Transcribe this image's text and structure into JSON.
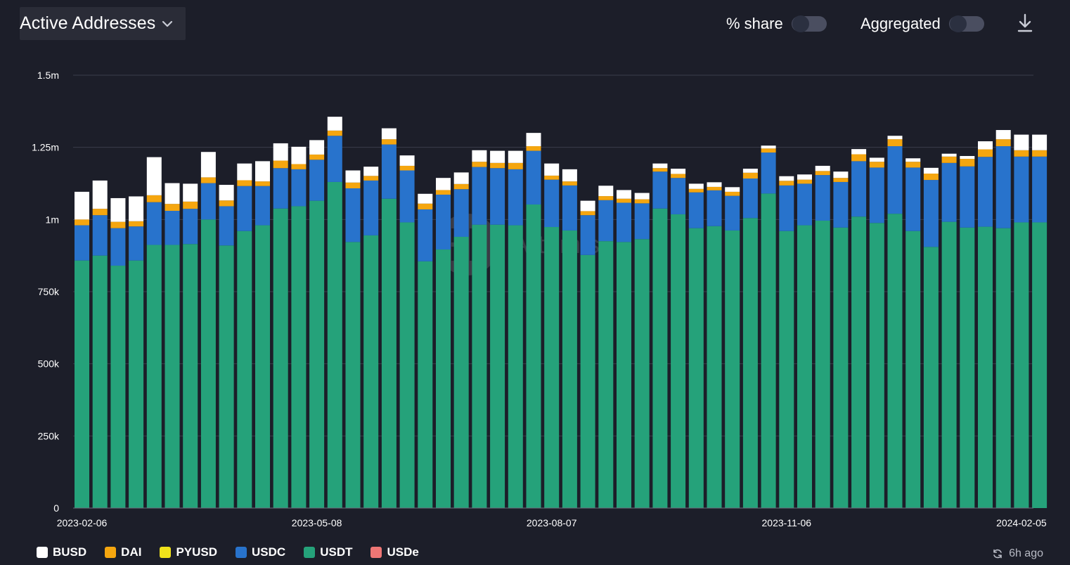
{
  "header": {
    "metric_title": "Active Addresses",
    "toggles": [
      {
        "label": "% share",
        "on": false
      },
      {
        "label": "Aggregated",
        "on": false
      }
    ]
  },
  "watermark": "Artemis",
  "updated_text": "6h ago",
  "colors": {
    "BUSD": "#ffffff",
    "DAI": "#f5a60f",
    "PYUSD": "#f0e21b",
    "USDC": "#2873cc",
    "USDT": "#25a27a",
    "USDe": "#ee7675",
    "grid": "#3a3d4a",
    "axis_text": "#ffffff"
  },
  "legend": [
    "BUSD",
    "DAI",
    "PYUSD",
    "USDC",
    "USDT",
    "USDe"
  ],
  "chart_data": {
    "type": "bar",
    "stacked": true,
    "title": "Active Addresses",
    "ylim": [
      0,
      1500000
    ],
    "y_ticks": [
      {
        "value": 0,
        "label": "0"
      },
      {
        "value": 250000,
        "label": "250k"
      },
      {
        "value": 500000,
        "label": "500k"
      },
      {
        "value": 750000,
        "label": "750k"
      },
      {
        "value": 1000000,
        "label": "1m"
      },
      {
        "value": 1250000,
        "label": "1.25m"
      },
      {
        "value": 1500000,
        "label": "1.5m"
      }
    ],
    "x_tick_labels": [
      {
        "index": 0,
        "label": "2023-02-06"
      },
      {
        "index": 13,
        "label": "2023-05-08"
      },
      {
        "index": 26,
        "label": "2023-08-07"
      },
      {
        "index": 39,
        "label": "2023-11-06"
      },
      {
        "index": 52,
        "label": "2024-02-05"
      }
    ],
    "categories": [
      "2023-02-06",
      "2023-02-13",
      "2023-02-20",
      "2023-02-27",
      "2023-03-06",
      "2023-03-13",
      "2023-03-20",
      "2023-03-27",
      "2023-04-03",
      "2023-04-10",
      "2023-04-17",
      "2023-04-24",
      "2023-05-01",
      "2023-05-08",
      "2023-05-15",
      "2023-05-22",
      "2023-05-29",
      "2023-06-05",
      "2023-06-12",
      "2023-06-19",
      "2023-06-26",
      "2023-07-03",
      "2023-07-10",
      "2023-07-17",
      "2023-07-24",
      "2023-07-31",
      "2023-08-07",
      "2023-08-14",
      "2023-08-21",
      "2023-08-28",
      "2023-09-04",
      "2023-09-11",
      "2023-09-18",
      "2023-09-25",
      "2023-10-02",
      "2023-10-09",
      "2023-10-16",
      "2023-10-23",
      "2023-10-30",
      "2023-11-06",
      "2023-11-13",
      "2023-11-20",
      "2023-11-27",
      "2023-12-04",
      "2023-12-11",
      "2023-12-18",
      "2023-12-25",
      "2024-01-01",
      "2024-01-08",
      "2024-01-15",
      "2024-01-22",
      "2024-01-29",
      "2024-02-05",
      "2024-02-12"
    ],
    "series": [
      {
        "name": "USDT",
        "values": [
          858000,
          875000,
          840000,
          858000,
          912000,
          912000,
          915000,
          1000000,
          910000,
          960000,
          980000,
          1038000,
          1046000,
          1065000,
          1130000,
          922000,
          945000,
          1072000,
          990000,
          855000,
          896000,
          940000,
          982000,
          982000,
          980000,
          1052000,
          974000,
          962000,
          877000,
          925000,
          922000,
          932000,
          1038000,
          1018000,
          970000,
          977000,
          962000,
          1005000,
          1090000,
          960000,
          980000,
          996000,
          972000,
          1010000,
          988000,
          1020000,
          960000,
          905000,
          992000,
          972000,
          975000,
          970000,
          990000,
          990000
        ]
      },
      {
        "name": "USDC",
        "values": [
          122000,
          140000,
          130000,
          118000,
          148000,
          118000,
          122000,
          126000,
          136000,
          156000,
          136000,
          140000,
          128000,
          142000,
          160000,
          186000,
          190000,
          188000,
          180000,
          180000,
          190000,
          165000,
          200000,
          196000,
          194000,
          186000,
          164000,
          156000,
          138000,
          142000,
          136000,
          124000,
          128000,
          126000,
          124000,
          124000,
          120000,
          137000,
          142000,
          158000,
          144000,
          158000,
          158000,
          192000,
          192000,
          234000,
          220000,
          232000,
          204000,
          212000,
          242000,
          284000,
          228000,
          228000
        ]
      },
      {
        "name": "DAI",
        "values": [
          20000,
          22000,
          22000,
          18000,
          24000,
          24000,
          25000,
          20000,
          20000,
          20000,
          16000,
          26000,
          18000,
          18000,
          18000,
          20000,
          16000,
          18000,
          16000,
          20000,
          16000,
          18000,
          18000,
          18000,
          22000,
          16000,
          14000,
          14000,
          14000,
          14000,
          14000,
          14000,
          12000,
          14000,
          12000,
          12000,
          14000,
          20000,
          14000,
          16000,
          14000,
          14000,
          14000,
          24000,
          20000,
          24000,
          20000,
          22000,
          22000,
          26000,
          26000,
          24000,
          22000,
          22000
        ]
      },
      {
        "name": "PYUSD",
        "values": [
          0,
          0,
          0,
          0,
          0,
          0,
          0,
          0,
          0,
          0,
          0,
          0,
          0,
          0,
          0,
          0,
          0,
          0,
          0,
          0,
          0,
          0,
          0,
          0,
          0,
          0,
          0,
          0,
          0,
          0,
          0,
          0,
          0,
          0,
          0,
          0,
          0,
          0,
          0,
          0,
          0,
          0,
          0,
          0,
          0,
          0,
          0,
          0,
          0,
          0,
          0,
          0,
          0,
          0
        ]
      },
      {
        "name": "BUSD",
        "values": [
          96000,
          98000,
          82000,
          86000,
          132000,
          72000,
          62000,
          88000,
          54000,
          58000,
          70000,
          60000,
          60000,
          50000,
          48000,
          42000,
          32000,
          38000,
          36000,
          34000,
          42000,
          40000,
          40000,
          42000,
          42000,
          46000,
          42000,
          42000,
          36000,
          36000,
          30000,
          22000,
          16000,
          18000,
          18000,
          16000,
          16000,
          14000,
          10000,
          16000,
          18000,
          18000,
          22000,
          18000,
          14000,
          12000,
          12000,
          20000,
          10000,
          10000,
          28000,
          32000,
          54000,
          54000
        ]
      },
      {
        "name": "USDe",
        "values": [
          0,
          0,
          0,
          0,
          0,
          0,
          0,
          0,
          0,
          0,
          0,
          0,
          0,
          0,
          0,
          0,
          0,
          0,
          0,
          0,
          0,
          0,
          0,
          0,
          0,
          0,
          0,
          0,
          0,
          0,
          0,
          0,
          0,
          0,
          0,
          0,
          0,
          0,
          0,
          0,
          0,
          0,
          0,
          0,
          0,
          0,
          0,
          0,
          0,
          0,
          0,
          0,
          0,
          0
        ]
      }
    ]
  }
}
